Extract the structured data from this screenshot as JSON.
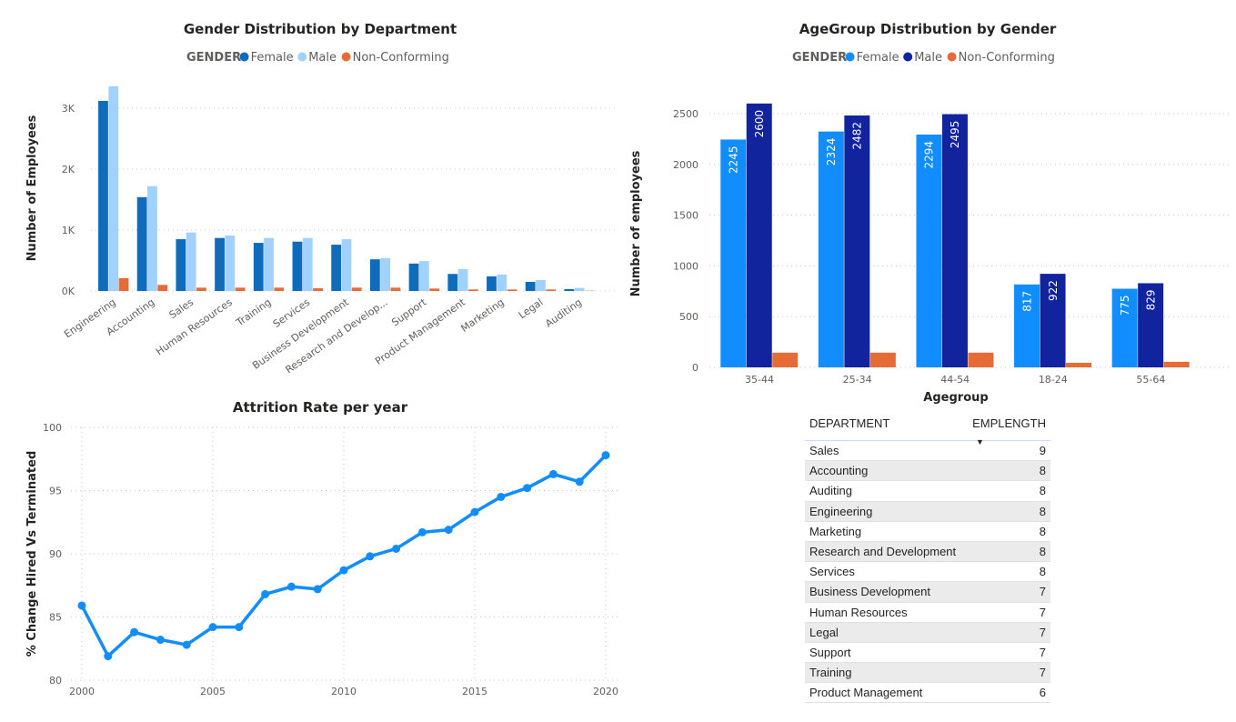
{
  "chart_data": [
    {
      "type": "bar",
      "title": "Gender Distribution by Department",
      "legend_title": "GENDER",
      "legend_placement": "top",
      "xlabel": "",
      "ylabel": "Number of Employees",
      "ylim": [
        0,
        3400
      ],
      "yticks": [
        "0K",
        "1K",
        "2K",
        "3K"
      ],
      "grid": true,
      "categories": [
        "Engineering",
        "Accounting",
        "Sales",
        "Human Resources",
        "Training",
        "Services",
        "Business Development",
        "Research and Develop...",
        "Support",
        "Product Management",
        "Marketing",
        "Legal",
        "Auditing"
      ],
      "series": [
        {
          "name": "Female",
          "color": "#0f6cbd",
          "values": [
            3120,
            1540,
            850,
            870,
            790,
            810,
            760,
            520,
            450,
            280,
            240,
            150,
            30
          ]
        },
        {
          "name": "Male",
          "color": "#a0d1ff",
          "values": [
            3360,
            1720,
            960,
            910,
            870,
            870,
            850,
            540,
            490,
            360,
            270,
            180,
            50
          ]
        },
        {
          "name": "Non-Conforming",
          "color": "#e66c37",
          "values": [
            210,
            100,
            55,
            55,
            55,
            45,
            55,
            55,
            40,
            25,
            25,
            25,
            5
          ]
        }
      ]
    },
    {
      "type": "bar",
      "title": "AgeGroup Distribution by Gender",
      "legend_title": "GENDER",
      "legend_placement": "top",
      "xlabel": "Agegroup",
      "ylabel": "Number of employees",
      "ylim": [
        0,
        2600
      ],
      "yticks": [
        0,
        500,
        1000,
        1500,
        2000,
        2500
      ],
      "grid": true,
      "categories": [
        "35-44",
        "25-34",
        "44-54",
        "18-24",
        "55-64"
      ],
      "series": [
        {
          "name": "Female",
          "color": "#118dff",
          "values": [
            2245,
            2324,
            2294,
            817,
            775
          ],
          "labels": true
        },
        {
          "name": "Male",
          "color": "#12239e",
          "values": [
            2600,
            2482,
            2495,
            922,
            829
          ],
          "labels": true
        },
        {
          "name": "Non-Conforming",
          "color": "#e66c37",
          "values": [
            145,
            145,
            145,
            45,
            55
          ]
        }
      ]
    },
    {
      "type": "line",
      "title": "Attrition Rate per year",
      "xlabel": "",
      "ylabel": "% Change Hired Vs Terminated",
      "xlim": [
        2000,
        2020
      ],
      "ylim": [
        80,
        100
      ],
      "xticks": [
        2000,
        2005,
        2010,
        2015,
        2020
      ],
      "yticks": [
        80,
        85,
        90,
        95,
        100
      ],
      "grid": true,
      "color": "#118dff",
      "x": [
        2000,
        2001,
        2002,
        2003,
        2004,
        2005,
        2006,
        2007,
        2008,
        2009,
        2010,
        2011,
        2012,
        2013,
        2014,
        2015,
        2016,
        2017,
        2018,
        2019,
        2020
      ],
      "y": [
        85.9,
        81.9,
        83.8,
        83.2,
        82.8,
        84.2,
        84.2,
        86.8,
        87.4,
        87.2,
        88.7,
        89.8,
        90.4,
        91.7,
        91.9,
        93.3,
        94.5,
        95.2,
        96.3,
        95.7,
        97.8
      ]
    }
  ],
  "table": {
    "headers": [
      "DEPARTMENT",
      "EMPLENGTH"
    ],
    "sort_icon": "sort-descending-icon",
    "rows": [
      [
        "Sales",
        "9"
      ],
      [
        "Accounting",
        "8"
      ],
      [
        "Auditing",
        "8"
      ],
      [
        "Engineering",
        "8"
      ],
      [
        "Marketing",
        "8"
      ],
      [
        "Research and Development",
        "8"
      ],
      [
        "Services",
        "8"
      ],
      [
        "Business Development",
        "7"
      ],
      [
        "Human Resources",
        "7"
      ],
      [
        "Legal",
        "7"
      ],
      [
        "Support",
        "7"
      ],
      [
        "Training",
        "7"
      ],
      [
        "Product Management",
        "6"
      ]
    ]
  }
}
